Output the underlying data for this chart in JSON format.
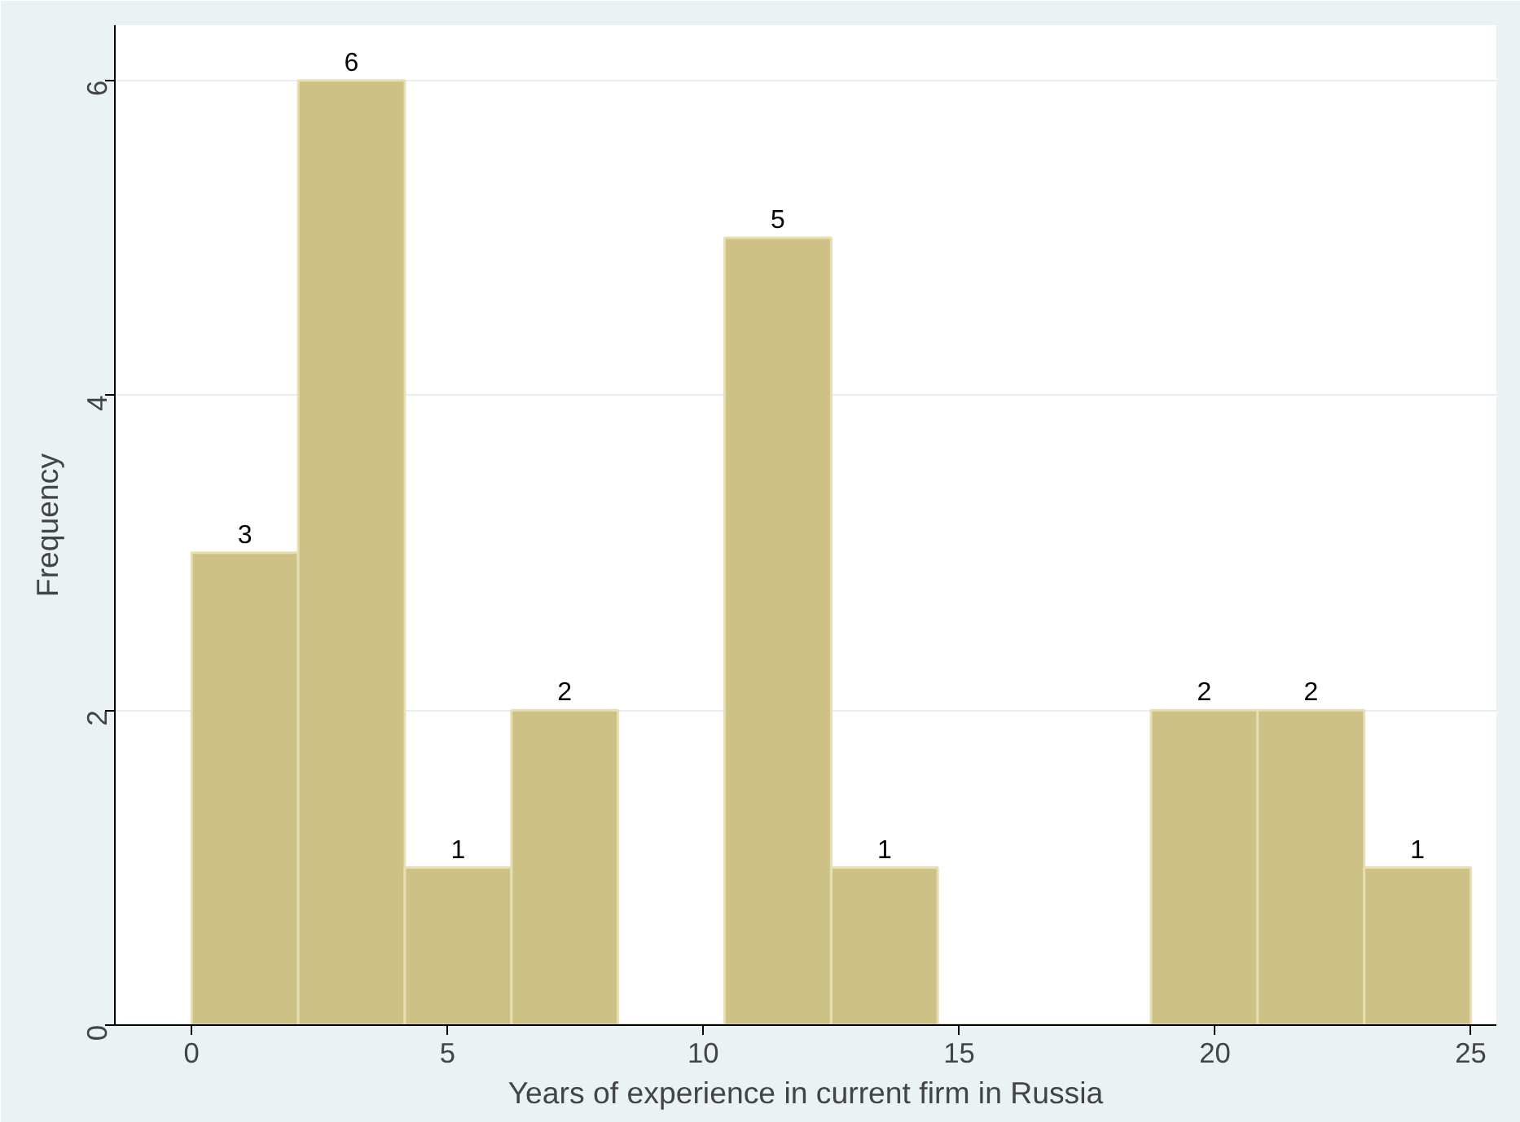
{
  "chart_data": {
    "type": "histogram",
    "xlabel": "Years of experience in current firm in Russia",
    "ylabel": "Frequency",
    "bins": [
      0,
      2.083,
      4.167,
      6.25,
      8.333,
      10.417,
      12.5,
      14.583,
      16.667,
      18.75,
      20.833,
      22.917,
      25
    ],
    "values": [
      3,
      6,
      1,
      2,
      0,
      5,
      1,
      0,
      0,
      2,
      2,
      1
    ],
    "value_labels": [
      "3",
      "6",
      "1",
      "2",
      null,
      "5",
      "1",
      null,
      null,
      "2",
      "2",
      "1"
    ],
    "color": "#cdc185",
    "xlim": [
      -1.5,
      25.5
    ],
    "xticks": [
      0,
      5,
      10,
      15,
      20,
      25
    ],
    "ylim": [
      0,
      6.35
    ],
    "yticks": [
      0,
      2,
      4,
      6
    ],
    "grid": "y"
  }
}
